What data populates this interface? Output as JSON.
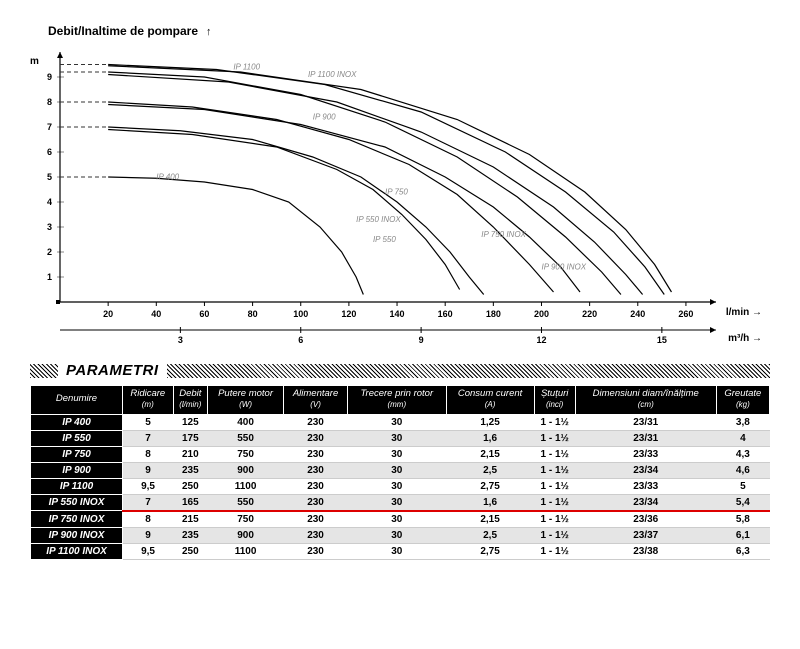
{
  "chart": {
    "title": "Debit/Inaltime de pompare",
    "y_unit": "m",
    "x_unit_primary": "l/min",
    "x_unit_secondary": "m³/h",
    "background_color": "#ffffff",
    "grid_color": "#888888",
    "axis_color": "#000000",
    "curve_color": "#000000",
    "dashed_color": "#333333",
    "label_color": "#888888",
    "label_fontsize": 8,
    "title_fontsize": 12,
    "xlim": [
      0,
      270
    ],
    "ylim": [
      0,
      10
    ],
    "xtick_step": 20,
    "ytick_step": 1,
    "x2_ticks": [
      3,
      6,
      9,
      12,
      15
    ],
    "line_width": 1.2,
    "curves": [
      {
        "label": "IP 400",
        "label_xy": [
          40,
          4.9
        ],
        "dash_y": 5,
        "points": [
          [
            20,
            5
          ],
          [
            40,
            4.95
          ],
          [
            60,
            4.8
          ],
          [
            80,
            4.5
          ],
          [
            95,
            4
          ],
          [
            108,
            3
          ],
          [
            117,
            2
          ],
          [
            123,
            1
          ],
          [
            126,
            0.3
          ]
        ]
      },
      {
        "label": "IP 550",
        "label_xy": [
          130,
          2.4
        ],
        "dash_y": 7,
        "points": [
          [
            20,
            7
          ],
          [
            50,
            6.85
          ],
          [
            80,
            6.5
          ],
          [
            105,
            5.8
          ],
          [
            125,
            5
          ],
          [
            140,
            4
          ],
          [
            152,
            3
          ],
          [
            162,
            2
          ],
          [
            170,
            1
          ],
          [
            176,
            0.3
          ]
        ]
      },
      {
        "label": "IP 550 INOX",
        "label_xy": [
          123,
          3.2
        ],
        "dash_y": null,
        "points": [
          [
            20,
            6.9
          ],
          [
            55,
            6.7
          ],
          [
            90,
            6.2
          ],
          [
            115,
            5.3
          ],
          [
            130,
            4.5
          ],
          [
            142,
            3.5
          ],
          [
            152,
            2.5
          ],
          [
            160,
            1.5
          ],
          [
            166,
            0.5
          ]
        ]
      },
      {
        "label": "IP 750",
        "label_xy": [
          135,
          4.3
        ],
        "dash_y": 8,
        "points": [
          [
            20,
            8
          ],
          [
            55,
            7.8
          ],
          [
            90,
            7.3
          ],
          [
            120,
            6.5
          ],
          [
            145,
            5.5
          ],
          [
            165,
            4.3
          ],
          [
            180,
            3
          ],
          [
            195,
            1.5
          ],
          [
            205,
            0.4
          ]
        ]
      },
      {
        "label": "IP 750 INOX",
        "label_xy": [
          175,
          2.6
        ],
        "dash_y": null,
        "points": [
          [
            20,
            7.9
          ],
          [
            60,
            7.7
          ],
          [
            100,
            7.1
          ],
          [
            135,
            6.2
          ],
          [
            160,
            5
          ],
          [
            180,
            3.8
          ],
          [
            195,
            2.6
          ],
          [
            208,
            1.4
          ],
          [
            216,
            0.4
          ]
        ]
      },
      {
        "label": "IP 900",
        "label_xy": [
          105,
          7.3
        ],
        "dash_y": 9.2,
        "points": [
          [
            20,
            9.2
          ],
          [
            60,
            9
          ],
          [
            100,
            8.3
          ],
          [
            135,
            7.2
          ],
          [
            165,
            5.8
          ],
          [
            190,
            4.2
          ],
          [
            210,
            2.6
          ],
          [
            225,
            1.2
          ],
          [
            233,
            0.3
          ]
        ]
      },
      {
        "label": "IP 900 INOX",
        "label_xy": [
          200,
          1.3
        ],
        "dash_y": null,
        "points": [
          [
            20,
            9.1
          ],
          [
            70,
            8.8
          ],
          [
            115,
            8
          ],
          [
            150,
            6.8
          ],
          [
            180,
            5.4
          ],
          [
            205,
            3.8
          ],
          [
            222,
            2.4
          ],
          [
            235,
            1.1
          ],
          [
            242,
            0.3
          ]
        ]
      },
      {
        "label": "IP 1100",
        "label_xy": [
          72,
          9.3
        ],
        "dash_y": 9.5,
        "points": [
          [
            20,
            9.5
          ],
          [
            65,
            9.3
          ],
          [
            110,
            8.7
          ],
          [
            150,
            7.6
          ],
          [
            185,
            6
          ],
          [
            210,
            4.4
          ],
          [
            230,
            2.8
          ],
          [
            243,
            1.4
          ],
          [
            251,
            0.3
          ]
        ]
      },
      {
        "label": "IP 1100 INOX",
        "label_xy": [
          103,
          9.0
        ],
        "dash_y": null,
        "points": [
          [
            20,
            9.45
          ],
          [
            75,
            9.2
          ],
          [
            125,
            8.5
          ],
          [
            165,
            7.3
          ],
          [
            195,
            5.9
          ],
          [
            218,
            4.4
          ],
          [
            235,
            2.9
          ],
          [
            247,
            1.5
          ],
          [
            254,
            0.4
          ]
        ]
      }
    ]
  },
  "section_title": "PARAMETRI",
  "table": {
    "header_bg": "#000000",
    "header_fg": "#ffffff",
    "row_alt_bg": "#e5e5e5",
    "highlight_color": "#d00000",
    "highlight_row_index": 6,
    "columns": [
      "Denumire",
      "Ridicare\n(m)",
      "Debit\n(l/min)",
      "Putere motor\n(W)",
      "Alimentare\n(V)",
      "Trecere prin rotor\n(mm)",
      "Consum curent\n(A)",
      "Ștuțuri\n(inci)",
      "Dimensiuni diam/înălțime\n(cm)",
      "Greutate\n(kg)"
    ],
    "rows": [
      [
        "IP 400",
        "5",
        "125",
        "400",
        "230",
        "30",
        "1,25",
        "1 - 1½",
        "23/31",
        "3,8"
      ],
      [
        "IP 550",
        "7",
        "175",
        "550",
        "230",
        "30",
        "1,6",
        "1 - 1½",
        "23/31",
        "4"
      ],
      [
        "IP 750",
        "8",
        "210",
        "750",
        "230",
        "30",
        "2,15",
        "1 - 1½",
        "23/33",
        "4,3"
      ],
      [
        "IP 900",
        "9",
        "235",
        "900",
        "230",
        "30",
        "2,5",
        "1 - 1½",
        "23/34",
        "4,6"
      ],
      [
        "IP 1100",
        "9,5",
        "250",
        "1100",
        "230",
        "30",
        "2,75",
        "1 - 1½",
        "23/33",
        "5"
      ],
      [
        "IP 550 INOX",
        "7",
        "165",
        "550",
        "230",
        "30",
        "1,6",
        "1 - 1½",
        "23/34",
        "5,4"
      ],
      [
        "IP 750 INOX",
        "8",
        "215",
        "750",
        "230",
        "30",
        "2,15",
        "1 - 1½",
        "23/36",
        "5,8"
      ],
      [
        "IP 900 INOX",
        "9",
        "235",
        "900",
        "230",
        "30",
        "2,5",
        "1 - 1½",
        "23/37",
        "6,1"
      ],
      [
        "IP 1100 INOX",
        "9,5",
        "250",
        "1100",
        "230",
        "30",
        "2,75",
        "1 - 1½",
        "23/38",
        "6,3"
      ]
    ]
  }
}
